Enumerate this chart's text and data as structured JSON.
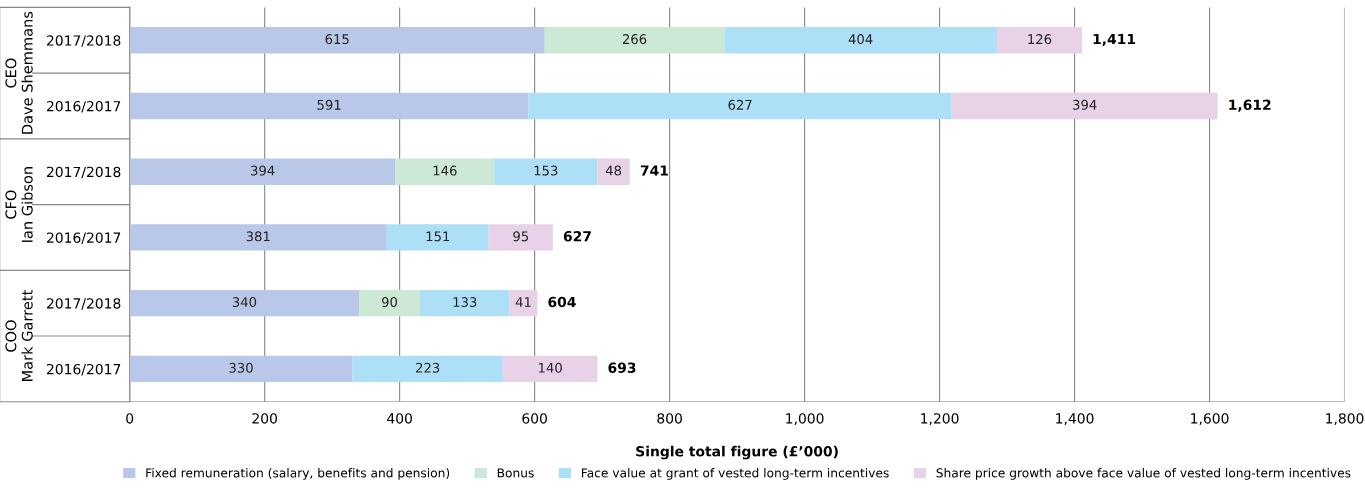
{
  "chart_data": {
    "type": "bar",
    "orientation": "horizontal",
    "stacked": true,
    "xlabel": "Single total figure (£’000)",
    "categories": [
      "2017/2018",
      "2016/2017",
      "2017/2018",
      "2016/2017",
      "2017/2018",
      "2016/2017"
    ],
    "annotations": [
      "CEO\nDave Shemmans",
      "CFO\nIan Gibson",
      "COO\nMark Garrett"
    ],
    "series": [
      {
        "name": "Fixed remuneration (salary, benefits and pension)",
        "color": "#b9c8e8",
        "values": [
          615,
          591,
          394,
          381,
          340,
          330
        ]
      },
      {
        "name": "Bonus",
        "color": "#cde8d5",
        "values": [
          266,
          null,
          146,
          null,
          90,
          null
        ]
      },
      {
        "name": "Face value at grant of vested long-term incentives",
        "color": "#ade0f7",
        "values": [
          404,
          627,
          153,
          151,
          133,
          223
        ]
      },
      {
        "name": "Share price growth above face value of vested long-term incentives",
        "color": "#e8d2e8",
        "values": [
          126,
          394,
          48,
          95,
          41,
          140
        ]
      }
    ],
    "totals": [
      "1,411",
      "1,612",
      "741",
      "627",
      "604",
      "693"
    ],
    "data_labels": true,
    "xlim": [
      0,
      1800
    ],
    "xticks": [
      0,
      200,
      400,
      600,
      800,
      {
        "value": 1000,
        "label": "1,000"
      },
      {
        "value": 1200,
        "label": "1,200"
      },
      {
        "value": 1400,
        "label": "1,400"
      },
      {
        "value": 1600,
        "label": "1,600"
      },
      {
        "value": 1800,
        "label": "1,800"
      }
    ],
    "grid": "x",
    "legend": "bottom"
  }
}
